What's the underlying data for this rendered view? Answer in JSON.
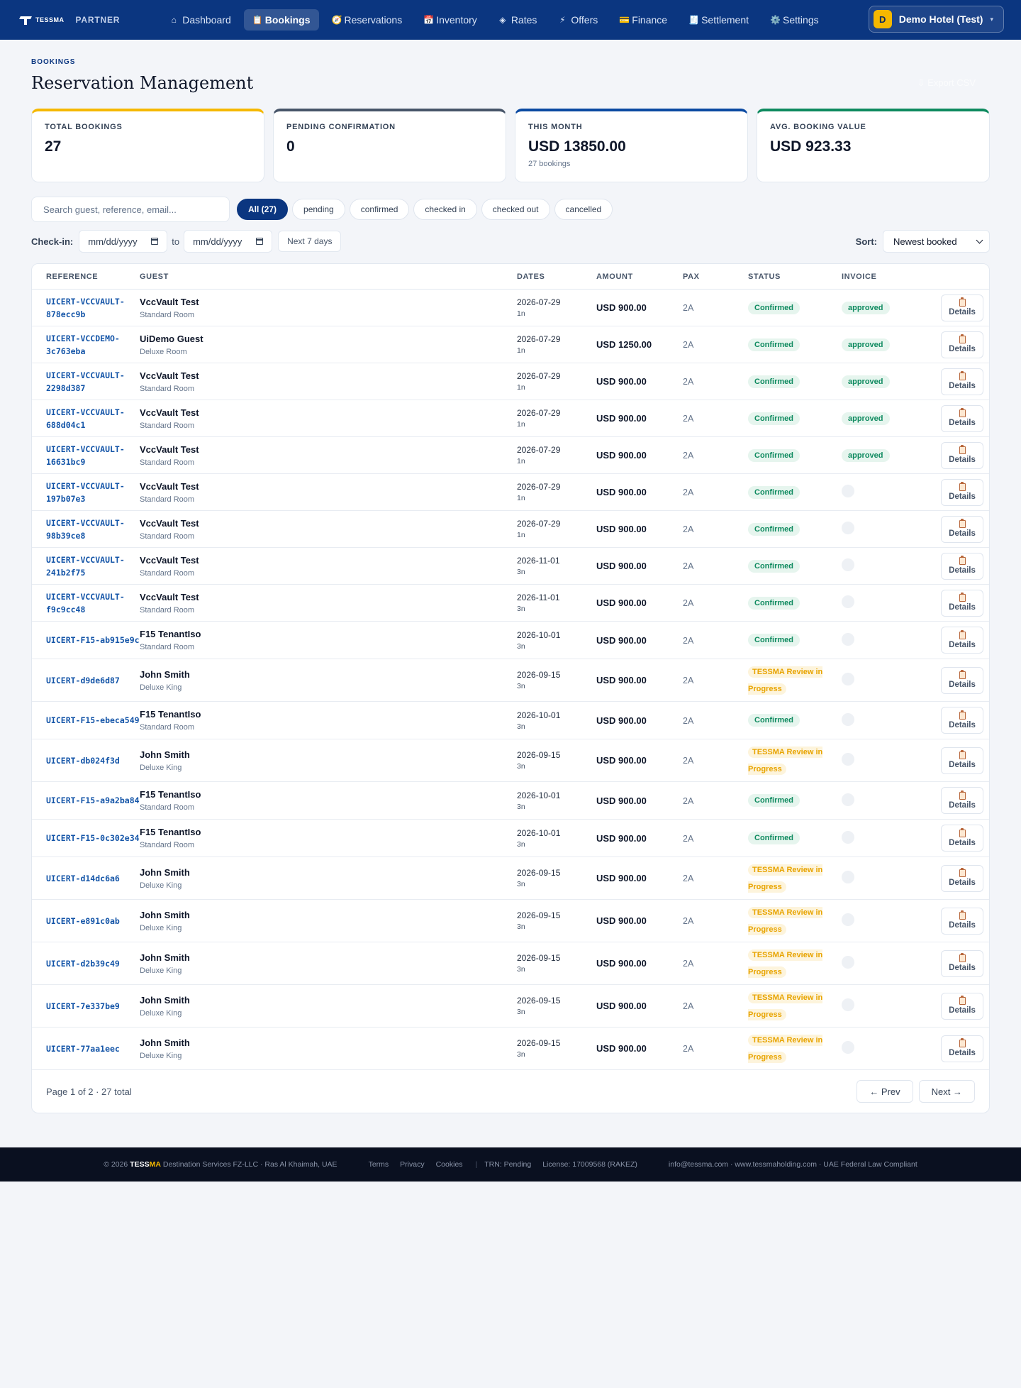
{
  "nav": {
    "logo_text": "TESSMA",
    "partner_label": "PARTNER",
    "items": [
      {
        "label": "Dashboard",
        "icon": "⌂",
        "icon_name": "home-icon",
        "active": false
      },
      {
        "label": "Bookings",
        "icon": "📋",
        "icon_name": "clipboard-icon",
        "active": true
      },
      {
        "label": "Reservations",
        "icon": "🧭",
        "icon_name": "compass-icon",
        "active": false
      },
      {
        "label": "Inventory",
        "icon": "📅",
        "icon_name": "calendar-icon",
        "active": false
      },
      {
        "label": "Rates",
        "icon": "◈",
        "icon_name": "diamond-icon",
        "active": false
      },
      {
        "label": "Offers",
        "icon": "⚡",
        "icon_name": "lightning-icon",
        "active": false
      },
      {
        "label": "Finance",
        "icon": "💳",
        "icon_name": "card-icon",
        "active": false
      },
      {
        "label": "Settlement",
        "icon": "🧾",
        "icon_name": "receipt-icon",
        "active": false
      },
      {
        "label": "Settings",
        "icon": "⚙️",
        "icon_name": "gear-icon",
        "active": false
      }
    ],
    "hotel": {
      "initial": "D",
      "name": "Demo Hotel (Test)",
      "caret": "▾"
    }
  },
  "page": {
    "eyebrow": "BOOKINGS",
    "title": "Reservation Management",
    "export_label": "⇩ Export CSV"
  },
  "stats": [
    {
      "label": "TOTAL BOOKINGS",
      "value": "27",
      "sub": "",
      "color": "#f5b800"
    },
    {
      "label": "PENDING CONFIRMATION",
      "value": "0",
      "sub": "",
      "color": "#475569"
    },
    {
      "label": "THIS MONTH",
      "value": "USD 13850.00",
      "sub": "27 bookings",
      "color": "#0b4aa2"
    },
    {
      "label": "AVG. BOOKING VALUE",
      "value": "USD 923.33",
      "sub": "",
      "color": "#0e8a5f"
    }
  ],
  "filters": {
    "search_placeholder": "Search guest, reference, email...",
    "chips": [
      "All (27)",
      "pending",
      "confirmed",
      "checked in",
      "checked out",
      "cancelled"
    ],
    "active_chip": 0,
    "checkin_label": "Check-in:",
    "date_from": "mm/dd/yyyy",
    "to_label": "to",
    "date_to": "mm/dd/yyyy",
    "next7_label": "Next 7 days",
    "sort_label": "Sort:",
    "sort_value": "Newest booked"
  },
  "table": {
    "headers": {
      "reference": "REFERENCE",
      "guest": "GUEST",
      "dates": "DATES",
      "amount": "AMOUNT",
      "pax": "PAX",
      "status": "STATUS",
      "invoice": "INVOICE"
    },
    "details_label": "Details",
    "rows": [
      {
        "ref": [
          "UICERT-VCCVAULT-",
          "878ecc9b"
        ],
        "guest": "VccVault Test",
        "room": "Standard Room",
        "date": "2026-07-29",
        "nights": "1n",
        "amount": "USD 900.00",
        "pax": "2A",
        "status": "Confirmed",
        "invoice": "approved"
      },
      {
        "ref": [
          "UICERT-VCCDEMO-",
          "3c763eba"
        ],
        "guest": "UiDemo Guest",
        "room": "Deluxe Room",
        "date": "2026-07-29",
        "nights": "1n",
        "amount": "USD 1250.00",
        "pax": "2A",
        "status": "Confirmed",
        "invoice": "approved"
      },
      {
        "ref": [
          "UICERT-VCCVAULT-",
          "2298d387"
        ],
        "guest": "VccVault Test",
        "room": "Standard Room",
        "date": "2026-07-29",
        "nights": "1n",
        "amount": "USD 900.00",
        "pax": "2A",
        "status": "Confirmed",
        "invoice": "approved"
      },
      {
        "ref": [
          "UICERT-VCCVAULT-",
          "688d04c1"
        ],
        "guest": "VccVault Test",
        "room": "Standard Room",
        "date": "2026-07-29",
        "nights": "1n",
        "amount": "USD 900.00",
        "pax": "2A",
        "status": "Confirmed",
        "invoice": "approved"
      },
      {
        "ref": [
          "UICERT-VCCVAULT-",
          "16631bc9"
        ],
        "guest": "VccVault Test",
        "room": "Standard Room",
        "date": "2026-07-29",
        "nights": "1n",
        "amount": "USD 900.00",
        "pax": "2A",
        "status": "Confirmed",
        "invoice": "approved"
      },
      {
        "ref": [
          "UICERT-VCCVAULT-",
          "197b07e3"
        ],
        "guest": "VccVault Test",
        "room": "Standard Room",
        "date": "2026-07-29",
        "nights": "1n",
        "amount": "USD 900.00",
        "pax": "2A",
        "status": "Confirmed",
        "invoice": ""
      },
      {
        "ref": [
          "UICERT-VCCVAULT-",
          "98b39ce8"
        ],
        "guest": "VccVault Test",
        "room": "Standard Room",
        "date": "2026-07-29",
        "nights": "1n",
        "amount": "USD 900.00",
        "pax": "2A",
        "status": "Confirmed",
        "invoice": ""
      },
      {
        "ref": [
          "UICERT-VCCVAULT-",
          "241b2f75"
        ],
        "guest": "VccVault Test",
        "room": "Standard Room",
        "date": "2026-11-01",
        "nights": "3n",
        "amount": "USD 900.00",
        "pax": "2A",
        "status": "Confirmed",
        "invoice": ""
      },
      {
        "ref": [
          "UICERT-VCCVAULT-",
          "f9c9cc48"
        ],
        "guest": "VccVault Test",
        "room": "Standard Room",
        "date": "2026-11-01",
        "nights": "3n",
        "amount": "USD 900.00",
        "pax": "2A",
        "status": "Confirmed",
        "invoice": ""
      },
      {
        "ref": [
          "UICERT-F15-ab915e9c"
        ],
        "guest": "F15 TenantIso",
        "room": "Standard Room",
        "date": "2026-10-01",
        "nights": "3n",
        "amount": "USD 900.00",
        "pax": "2A",
        "status": "Confirmed",
        "invoice": ""
      },
      {
        "ref": [
          "UICERT-d9de6d87"
        ],
        "guest": "John Smith",
        "room": "Deluxe King",
        "date": "2026-09-15",
        "nights": "3n",
        "amount": "USD 900.00",
        "pax": "2A",
        "status": "TESSMA Review in Progress",
        "invoice": ""
      },
      {
        "ref": [
          "UICERT-F15-ebeca549"
        ],
        "guest": "F15 TenantIso",
        "room": "Standard Room",
        "date": "2026-10-01",
        "nights": "3n",
        "amount": "USD 900.00",
        "pax": "2A",
        "status": "Confirmed",
        "invoice": ""
      },
      {
        "ref": [
          "UICERT-db024f3d"
        ],
        "guest": "John Smith",
        "room": "Deluxe King",
        "date": "2026-09-15",
        "nights": "3n",
        "amount": "USD 900.00",
        "pax": "2A",
        "status": "TESSMA Review in Progress",
        "invoice": ""
      },
      {
        "ref": [
          "UICERT-F15-a9a2ba84"
        ],
        "guest": "F15 TenantIso",
        "room": "Standard Room",
        "date": "2026-10-01",
        "nights": "3n",
        "amount": "USD 900.00",
        "pax": "2A",
        "status": "Confirmed",
        "invoice": ""
      },
      {
        "ref": [
          "UICERT-F15-0c302e34"
        ],
        "guest": "F15 TenantIso",
        "room": "Standard Room",
        "date": "2026-10-01",
        "nights": "3n",
        "amount": "USD 900.00",
        "pax": "2A",
        "status": "Confirmed",
        "invoice": ""
      },
      {
        "ref": [
          "UICERT-d14dc6a6"
        ],
        "guest": "John Smith",
        "room": "Deluxe King",
        "date": "2026-09-15",
        "nights": "3n",
        "amount": "USD 900.00",
        "pax": "2A",
        "status": "TESSMA Review in Progress",
        "invoice": ""
      },
      {
        "ref": [
          "UICERT-e891c0ab"
        ],
        "guest": "John Smith",
        "room": "Deluxe King",
        "date": "2026-09-15",
        "nights": "3n",
        "amount": "USD 900.00",
        "pax": "2A",
        "status": "TESSMA Review in Progress",
        "invoice": ""
      },
      {
        "ref": [
          "UICERT-d2b39c49"
        ],
        "guest": "John Smith",
        "room": "Deluxe King",
        "date": "2026-09-15",
        "nights": "3n",
        "amount": "USD 900.00",
        "pax": "2A",
        "status": "TESSMA Review in Progress",
        "invoice": ""
      },
      {
        "ref": [
          "UICERT-7e337be9"
        ],
        "guest": "John Smith",
        "room": "Deluxe King",
        "date": "2026-09-15",
        "nights": "3n",
        "amount": "USD 900.00",
        "pax": "2A",
        "status": "TESSMA Review in Progress",
        "invoice": ""
      },
      {
        "ref": [
          "UICERT-77aa1eec"
        ],
        "guest": "John Smith",
        "room": "Deluxe King",
        "date": "2026-09-15",
        "nights": "3n",
        "amount": "USD 900.00",
        "pax": "2A",
        "status": "TESSMA Review in Progress",
        "invoice": ""
      }
    ],
    "page_info": "Page 1 of 2 · 27 total",
    "prev_label": "← Prev",
    "next_label": "Next →"
  },
  "footer": {
    "copyright": "© 2026",
    "brand_a": "TESS",
    "brand_b": "MA",
    "company": "Destination Services FZ-LLC · Ras Al Khaimah, UAE",
    "links": [
      "Terms",
      "Privacy",
      "Cookies"
    ],
    "separator": "|",
    "trn": "TRN: Pending",
    "license": "License: 17009568 (RAKEZ)",
    "contact": "info@tessma.com · www.tessmaholding.com · UAE Federal Law Compliant"
  }
}
